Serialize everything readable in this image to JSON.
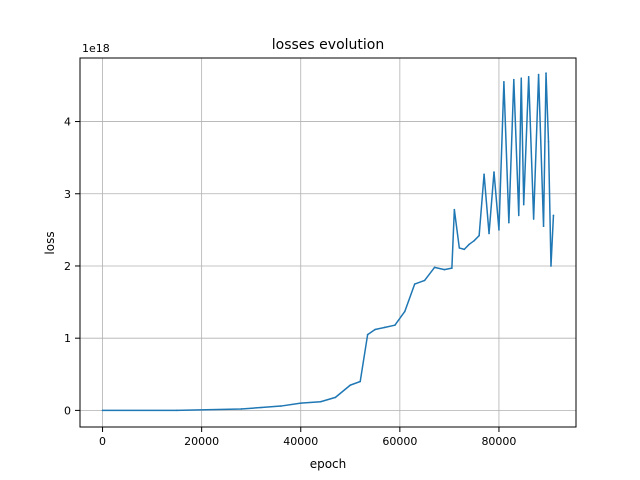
{
  "chart_data": {
    "type": "line",
    "title": "losses evolution",
    "xlabel": "epoch",
    "ylabel": "loss",
    "y_offset_label": "1e18",
    "xlim": [
      -4550,
      95550
    ],
    "ylim": [
      -2.3e+17,
      4.88e+18
    ],
    "x_ticks": [
      0,
      20000,
      40000,
      60000,
      80000
    ],
    "x_tick_labels": [
      "0",
      "20000",
      "40000",
      "60000",
      "80000"
    ],
    "y_ticks": [
      0,
      1e+18,
      2e+18,
      3e+18,
      4e+18
    ],
    "y_tick_labels": [
      "0",
      "1",
      "2",
      "3",
      "4"
    ],
    "grid": true,
    "line_color": "#1f77b4",
    "series": [
      {
        "x": [
          0,
          15000,
          28000,
          32000,
          36000,
          40000,
          44000,
          47000,
          50000,
          52000,
          53500,
          55000,
          57000,
          59000,
          61000,
          63000,
          65000,
          67000,
          69000,
          70500,
          71000,
          72000,
          73000,
          74000,
          75000,
          76000,
          77000,
          78000,
          79000,
          80000,
          81000,
          82000,
          83000,
          84000,
          84500,
          85000,
          86000,
          87000,
          88000,
          89000,
          89500,
          90000,
          90500,
          91000
        ],
        "y": [
          0,
          1000000000000000.0,
          2e+16,
          4e+16,
          6e+16,
          1e+17,
          1.2e+17,
          1.8e+17,
          3.5e+17,
          4e+17,
          1.05e+18,
          1.12e+18,
          1.15e+18,
          1.18e+18,
          1.37e+18,
          1.75e+18,
          1.8e+18,
          1.98e+18,
          1.95e+18,
          1.97e+18,
          2.78e+18,
          2.25e+18,
          2.23e+18,
          2.3e+18,
          2.35e+18,
          2.42e+18,
          3.27e+18,
          2.45e+18,
          3.3e+18,
          2.5e+18,
          4.55e+18,
          2.6e+18,
          4.58e+18,
          2.7e+18,
          4.6e+18,
          2.85e+18,
          4.62e+18,
          2.65e+18,
          4.65e+18,
          2.55e+18,
          4.67e+18,
          3.72e+18,
          2e+18,
          2.7e+18
        ]
      }
    ]
  }
}
